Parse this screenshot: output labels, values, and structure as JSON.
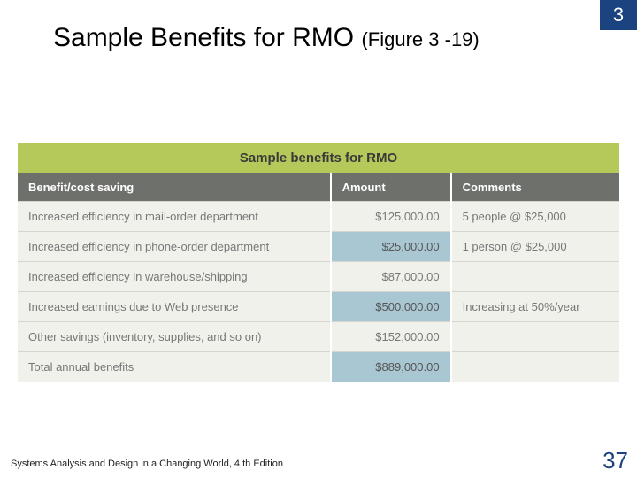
{
  "chapter_number": "3",
  "title_main": "Sample Benefits for RMO ",
  "title_fig": "(Figure 3 -19)",
  "table": {
    "caption": "Sample benefits for RMO",
    "headers": [
      "Benefit/cost saving",
      "Amount",
      "Comments"
    ],
    "col_widths_pct": [
      52,
      20,
      28
    ],
    "rows": [
      {
        "benefit": "Increased efficiency in mail-order department",
        "amount": "$125,000.00",
        "comment": "5 people @ $25,000",
        "band": false
      },
      {
        "benefit": "Increased efficiency in phone-order department",
        "amount": "$25,000.00",
        "comment": "1 person @ $25,000",
        "band": true
      },
      {
        "benefit": "Increased efficiency in warehouse/shipping",
        "amount": "$87,000.00",
        "comment": "",
        "band": false
      },
      {
        "benefit": "Increased earnings due to Web presence",
        "amount": "$500,000.00",
        "comment": "Increasing at 50%/year",
        "band": true
      },
      {
        "benefit": "Other savings (inventory, supplies, and so on)",
        "amount": "$152,000.00",
        "comment": "",
        "band": false
      },
      {
        "benefit": "Total annual benefits",
        "amount": "$889,000.00",
        "comment": "",
        "band": true
      }
    ],
    "colors": {
      "caption_bg": "#b5c85a",
      "header_bg": "#6e716b",
      "header_text": "#ffffff",
      "row_bg": "#f1f1ec",
      "band_amount_bg": "#a9c7d2",
      "border": "#d6d6d0",
      "text": "#777777"
    }
  },
  "footer_text": "Systems Analysis and Design in a Changing World, 4 th Edition",
  "page_number": "37",
  "colors": {
    "chapter_bg": "#1a4380",
    "pagenum": "#1a4380",
    "title": "#000000",
    "slide_bg": "#ffffff"
  }
}
